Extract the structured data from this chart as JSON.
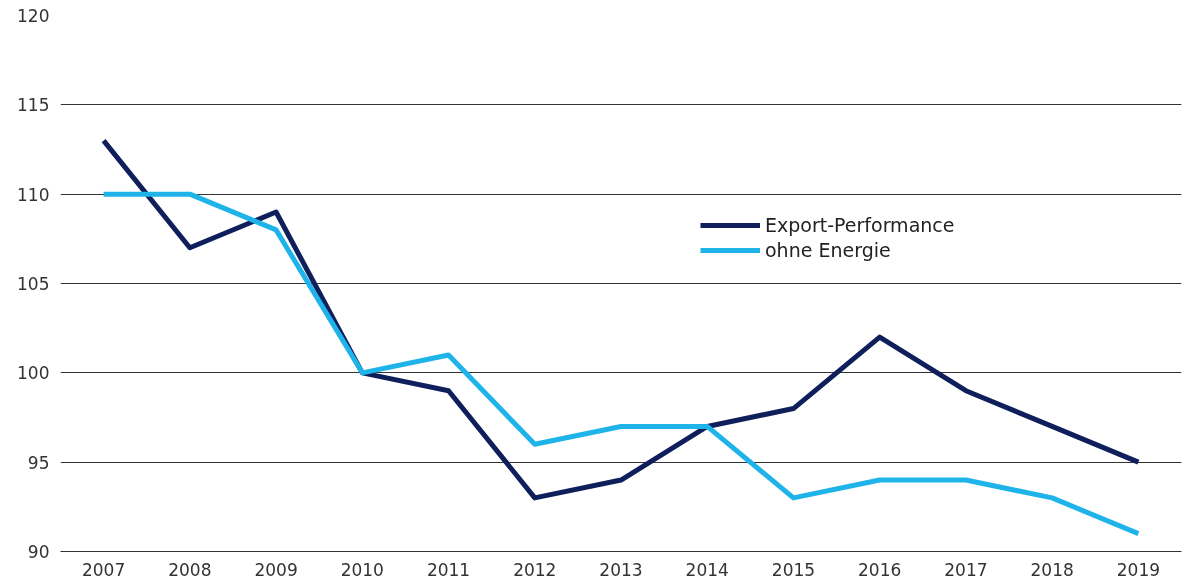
{
  "chart_data": {
    "type": "line",
    "categories": [
      "2007",
      "2008",
      "2009",
      "2010",
      "2011",
      "2012",
      "2013",
      "2014",
      "2015",
      "2016",
      "2017",
      "2018",
      "2019"
    ],
    "series": [
      {
        "name": "Export-Performance",
        "color": "#0f1f5c",
        "values": [
          113,
          107,
          109,
          100,
          99,
          93,
          94,
          97,
          98,
          102,
          99,
          97,
          95
        ]
      },
      {
        "name": "ohne Energie",
        "color": "#1eb4ea",
        "values": [
          110,
          110,
          108,
          100,
          101,
          96,
          97,
          97,
          93,
          94,
          94,
          93,
          91
        ]
      }
    ],
    "ylim": [
      90,
      120
    ],
    "yticks": [
      90,
      95,
      100,
      105,
      110,
      115,
      120
    ],
    "grid": "y",
    "legend": "right",
    "marker": "none",
    "line_style": "solid"
  }
}
